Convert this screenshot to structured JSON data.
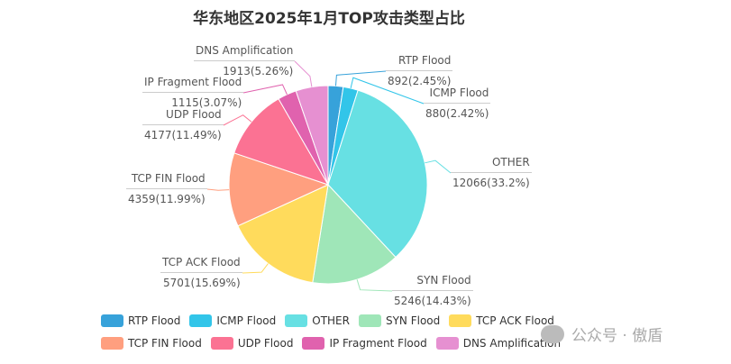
{
  "chart_data": {
    "type": "pie",
    "title": "华东地区2025年1月TOP攻击类型占比",
    "slices": [
      {
        "name": "RTP Flood",
        "value": 892,
        "percent": "2.45%",
        "color": "#37a2da"
      },
      {
        "name": "ICMP Flood",
        "value": 880,
        "percent": "2.42%",
        "color": "#32c5e9"
      },
      {
        "name": "OTHER",
        "value": 12066,
        "percent": "33.2%",
        "color": "#67e0e3"
      },
      {
        "name": "SYN Flood",
        "value": 5246,
        "percent": "14.43%",
        "color": "#9fe6b8"
      },
      {
        "name": "TCP ACK Flood",
        "value": 5701,
        "percent": "15.69%",
        "color": "#ffdb5c"
      },
      {
        "name": "TCP FIN Flood",
        "value": 4359,
        "percent": "11.99%",
        "color": "#ff9f7f"
      },
      {
        "name": "UDP Flood",
        "value": 4177,
        "percent": "11.49%",
        "color": "#fb7293"
      },
      {
        "name": "IP Fragment Flood",
        "value": 1115,
        "percent": "3.07%",
        "color": "#e062ae"
      },
      {
        "name": "DNS Amplification",
        "value": 1913,
        "percent": "5.26%",
        "color": "#e690d1"
      }
    ],
    "legend_position": "bottom"
  },
  "watermark": "公众号 · 傲盾"
}
